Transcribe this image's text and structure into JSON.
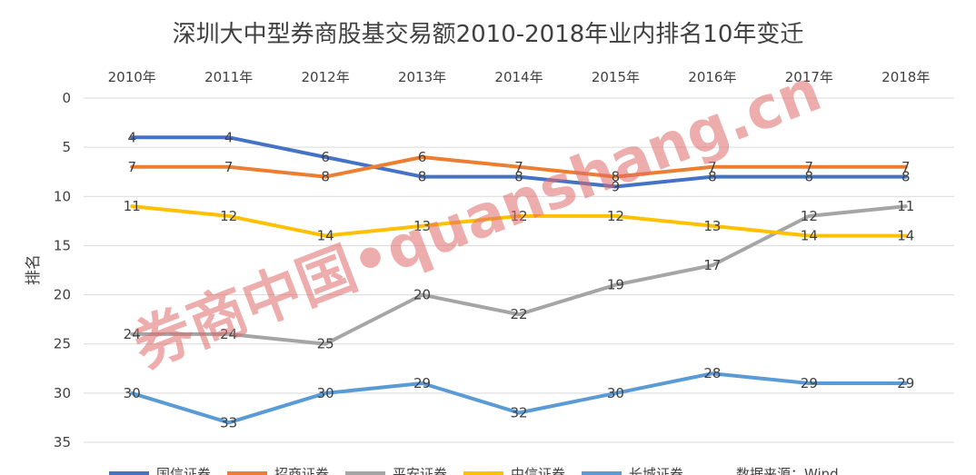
{
  "chart_data": {
    "type": "line",
    "title": "深圳大中型券商股基交易额2010-2018年业内排名10年变迁",
    "xlabel": "",
    "ylabel": "排名",
    "categories": [
      "2010年",
      "2011年",
      "2012年",
      "2013年",
      "2014年",
      "2015年",
      "2016年",
      "2017年",
      "2018年"
    ],
    "y_ticks": [
      0,
      5,
      10,
      15,
      20,
      25,
      30,
      35
    ],
    "ylim": [
      0,
      35
    ],
    "y_reversed": true,
    "x_axis_position": "top",
    "grid": true,
    "legend_position": "bottom",
    "series": [
      {
        "name": "国信证券",
        "color": "#4472c4",
        "values": [
          4,
          4,
          6,
          8,
          8,
          9,
          8,
          8,
          8
        ]
      },
      {
        "name": "招商证券",
        "color": "#ed7d31",
        "values": [
          7,
          7,
          8,
          6,
          7,
          8,
          7,
          7,
          7
        ]
      },
      {
        "name": "平安证券",
        "color": "#a5a5a5",
        "values": [
          24,
          24,
          25,
          20,
          22,
          19,
          17,
          12,
          11
        ]
      },
      {
        "name": "中信证券",
        "color": "#ffc000",
        "values": [
          11,
          12,
          14,
          13,
          12,
          12,
          13,
          14,
          14
        ]
      },
      {
        "name": "长城证券",
        "color": "#5b9bd5",
        "values": [
          30,
          33,
          30,
          29,
          32,
          30,
          28,
          29,
          29
        ]
      }
    ],
    "source_note": "数据来源：Wind",
    "watermark": "券商中国•quanshang.cn"
  }
}
